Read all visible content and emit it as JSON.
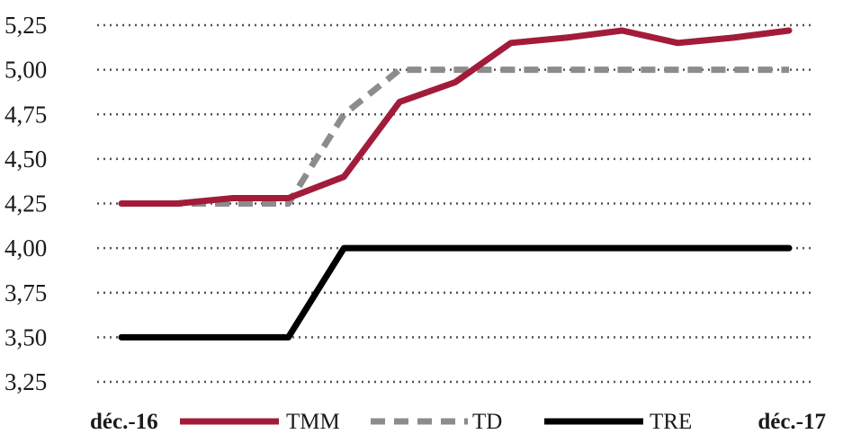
{
  "chart_data": {
    "type": "line",
    "title": "",
    "xlabel": "",
    "ylabel": "",
    "ylim": [
      3.25,
      5.25
    ],
    "yticks": [
      "3,25",
      "3,50",
      "3,75",
      "4,00",
      "4,25",
      "4,50",
      "4,75",
      "5,00",
      "5,25"
    ],
    "x_start_label": "déc.-16",
    "x_end_label": "déc.-17",
    "grid": "horizontal-dotted",
    "legend_position": "bottom",
    "series": [
      {
        "name": "TMM",
        "color": "#a21c3a",
        "style": "solid",
        "values": [
          4.25,
          4.25,
          4.28,
          4.28,
          4.4,
          4.82,
          4.93,
          5.15,
          5.18,
          5.22,
          5.15,
          5.18,
          5.22
        ]
      },
      {
        "name": "TD",
        "color": "#8c8c8c",
        "style": "dashed",
        "values": [
          4.25,
          4.25,
          4.25,
          4.25,
          4.75,
          5.0,
          5.0,
          5.0,
          5.0,
          5.0,
          5.0,
          5.0,
          5.0
        ]
      },
      {
        "name": "TRE",
        "color": "#000000",
        "style": "solid",
        "values": [
          3.5,
          3.5,
          3.5,
          3.5,
          4.0,
          4.0,
          4.0,
          4.0,
          4.0,
          4.0,
          4.0,
          4.0,
          4.0
        ]
      }
    ]
  }
}
